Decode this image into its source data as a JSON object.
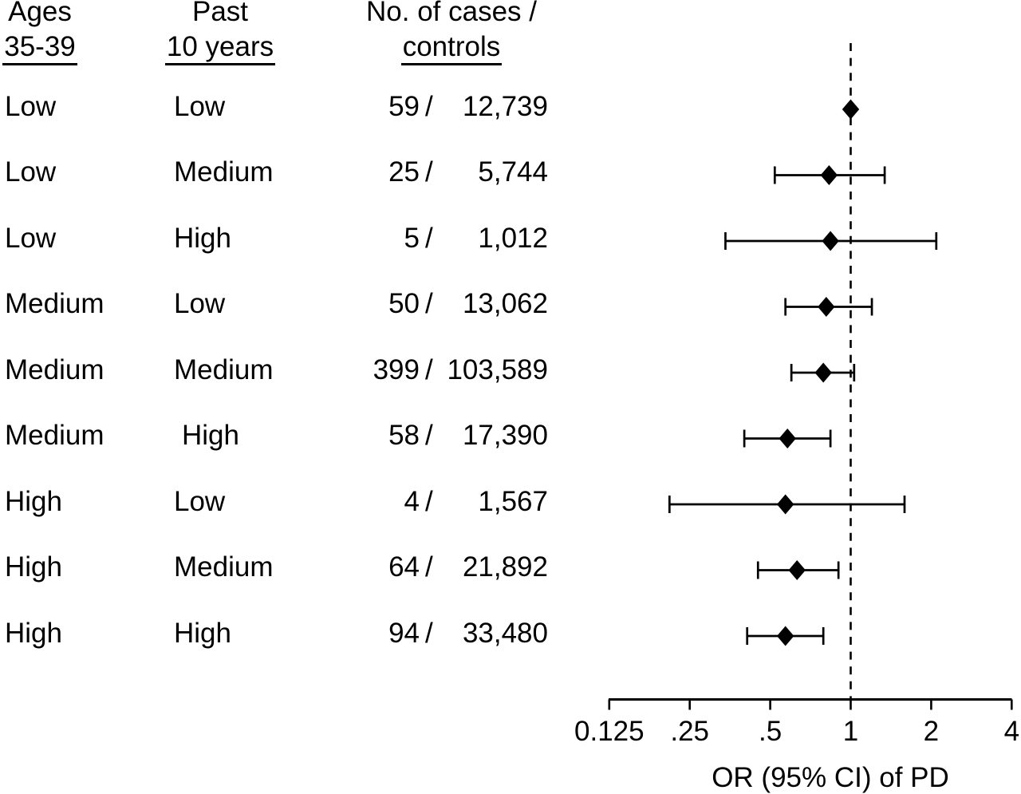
{
  "figure": {
    "background": "#ffffff",
    "text_color": "#000000",
    "marker_color": "#000000"
  },
  "table": {
    "headers": {
      "age": {
        "line1": "Ages",
        "line2": "35-39"
      },
      "past": {
        "line1": "Past",
        "line2": "10 years"
      },
      "counts": {
        "line1": "No. of cases /",
        "line2": "controls"
      }
    },
    "separator": "/"
  },
  "chart_data": {
    "type": "forest",
    "title": "",
    "xlabel": "OR (95% CI) of PD",
    "x_scale": "log2",
    "xlim": [
      0.125,
      4
    ],
    "reference_line": 1,
    "grid": false,
    "x_ticks": [
      {
        "value": 0.125,
        "label": "0.125"
      },
      {
        "value": 0.25,
        "label": ".25"
      },
      {
        "value": 0.5,
        "label": ".5"
      },
      {
        "value": 1,
        "label": "1"
      },
      {
        "value": 2,
        "label": "2"
      },
      {
        "value": 4,
        "label": "4"
      }
    ],
    "rows": [
      {
        "age": "Low",
        "past": "Low",
        "cases": "59",
        "controls": "12,739",
        "or": 1.0,
        "ci_low": null,
        "ci_high": null,
        "reference": true,
        "indent": false
      },
      {
        "age": "Low",
        "past": "Medium",
        "cases": "25",
        "controls": "5,744",
        "or": 0.83,
        "ci_low": 0.52,
        "ci_high": 1.34,
        "reference": false,
        "indent": false
      },
      {
        "age": "Low",
        "past": "High",
        "cases": "5",
        "controls": "1,012",
        "or": 0.84,
        "ci_low": 0.34,
        "ci_high": 2.09,
        "reference": false,
        "indent": false
      },
      {
        "age": "Medium",
        "past": "Low",
        "cases": "50",
        "controls": "13,062",
        "or": 0.81,
        "ci_low": 0.57,
        "ci_high": 1.2,
        "reference": false,
        "indent": false
      },
      {
        "age": "Medium",
        "past": "Medium",
        "cases": "399",
        "controls": "103,589",
        "or": 0.79,
        "ci_low": 0.6,
        "ci_high": 1.03,
        "reference": false,
        "indent": false
      },
      {
        "age": "Medium",
        "past": "High",
        "cases": "58",
        "controls": "17,390",
        "or": 0.58,
        "ci_low": 0.4,
        "ci_high": 0.84,
        "reference": false,
        "indent": true
      },
      {
        "age": "High",
        "past": "Low",
        "cases": "4",
        "controls": "1,567",
        "or": 0.57,
        "ci_low": 0.21,
        "ci_high": 1.59,
        "reference": false,
        "indent": false
      },
      {
        "age": "High",
        "past": "Medium",
        "cases": "64",
        "controls": "21,892",
        "or": 0.63,
        "ci_low": 0.45,
        "ci_high": 0.9,
        "reference": false,
        "indent": false
      },
      {
        "age": "High",
        "past": "High",
        "cases": "94",
        "controls": "33,480",
        "or": 0.57,
        "ci_low": 0.41,
        "ci_high": 0.79,
        "reference": false,
        "indent": false
      }
    ]
  }
}
